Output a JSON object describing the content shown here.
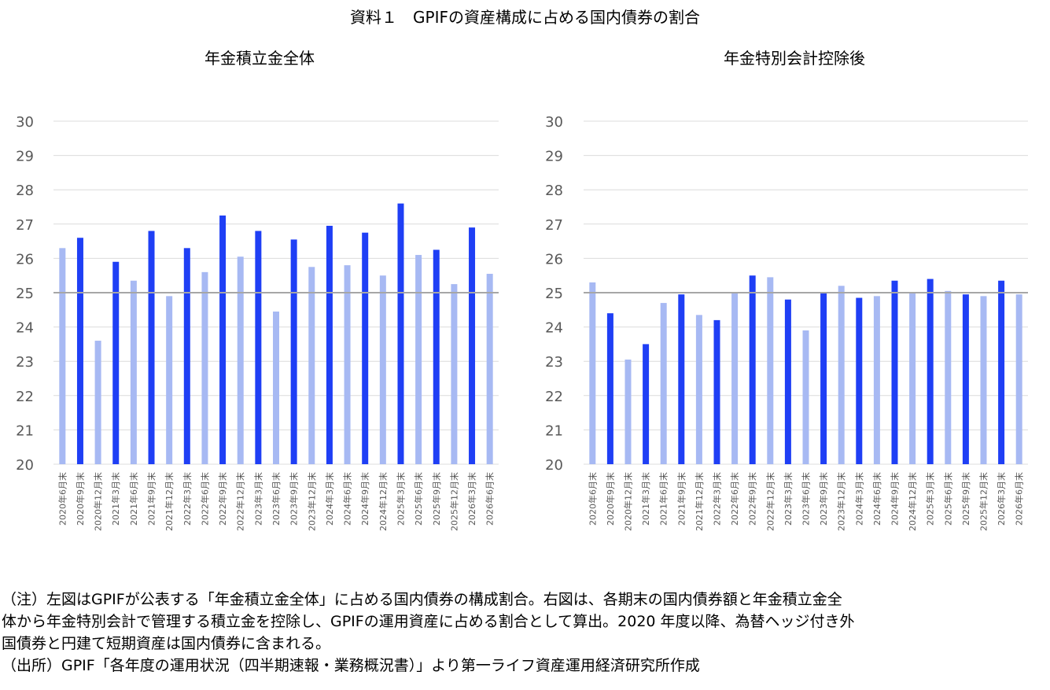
{
  "title": "資料１　GPIFの資産構成に占める国内債券の割合",
  "colors": {
    "dark": "#1f3ff5",
    "light": "#a7b9f3",
    "grid": "#dcdcdc",
    "refline": "#a6a6a6",
    "tick": "#595959"
  },
  "chart_data": [
    {
      "type": "bar",
      "title": "年金積立金全体",
      "categories": [
        "2020年6月末",
        "2020年9月末",
        "2020年12月末",
        "2021年3月末",
        "2021年6月末",
        "2021年9月末",
        "2021年12月末",
        "2022年3月末",
        "2022年6月末",
        "2022年9月末",
        "2022年12月末",
        "2023年3月末",
        "2023年6月末",
        "2023年9月末",
        "2023年12月末",
        "2024年3月末",
        "2024年6月末",
        "2024年9月末",
        "2024年12月末",
        "2025年3月末",
        "2025年6月末",
        "2025年9月末",
        "2025年12月末",
        "2026年3月末",
        "2026年6月末"
      ],
      "values": [
        26.3,
        26.6,
        23.6,
        25.9,
        25.35,
        26.8,
        24.9,
        26.3,
        25.6,
        27.25,
        26.05,
        26.8,
        24.45,
        26.55,
        25.75,
        26.95,
        25.8,
        26.75,
        25.5,
        27.6,
        26.1,
        26.25,
        25.25,
        26.9,
        25.55
      ],
      "bar_colors": [
        "light",
        "dark",
        "light",
        "dark",
        "light",
        "dark",
        "light",
        "dark",
        "light",
        "dark",
        "light",
        "dark",
        "light",
        "dark",
        "light",
        "dark",
        "light",
        "dark",
        "light",
        "dark",
        "light",
        "dark",
        "light",
        "dark",
        "light"
      ],
      "ylim": [
        20,
        30
      ],
      "yticks": [
        "30",
        "29",
        "28",
        "27",
        "26",
        "25",
        "24",
        "23",
        "22",
        "21",
        "20"
      ],
      "reference_line": 25,
      "grid": true
    },
    {
      "type": "bar",
      "title": "年金特別会計控除後",
      "categories": [
        "2020年6月末",
        "2020年9月末",
        "2020年12月末",
        "2021年3月末",
        "2021年6月末",
        "2021年9月末",
        "2021年12月末",
        "2022年3月末",
        "2022年6月末",
        "2022年9月末",
        "2022年12月末",
        "2023年3月末",
        "2023年6月末",
        "2023年9月末",
        "2023年12月末",
        "2024年3月末",
        "2024年6月末",
        "2024年9月末",
        "2024年12月末",
        "2025年3月末",
        "2025年6月末",
        "2025年9月末",
        "2025年12月末",
        "2026年3月末",
        "2026年6月末"
      ],
      "values": [
        25.3,
        24.4,
        23.05,
        23.5,
        24.7,
        24.95,
        24.35,
        24.2,
        25.0,
        25.5,
        25.45,
        24.8,
        23.9,
        25.0,
        25.2,
        24.85,
        24.9,
        25.35,
        25.0,
        25.4,
        25.05,
        24.95,
        24.9,
        25.35,
        24.95
      ],
      "bar_colors": [
        "light",
        "dark",
        "light",
        "dark",
        "light",
        "dark",
        "light",
        "dark",
        "light",
        "dark",
        "light",
        "dark",
        "light",
        "dark",
        "light",
        "dark",
        "light",
        "dark",
        "light",
        "dark",
        "light",
        "dark",
        "light",
        "dark",
        "light"
      ],
      "ylim": [
        20,
        30
      ],
      "yticks": [
        "30",
        "29",
        "28",
        "27",
        "26",
        "25",
        "24",
        "23",
        "22",
        "21",
        "20"
      ],
      "reference_line": 25,
      "grid": true
    }
  ],
  "notes": [
    "（注）左図はGPIFが公表する「年金積立金全体」に占める国内債券の構成割合。右図は、各期末の国内債券額と年金積立金全",
    "体から年金特別会計で管理する積立金を控除し、GPIFの運用資産に占める割合として算出。2020 年度以降、為替ヘッジ付き外",
    "国債券と円建て短期資産は国内債券に含まれる。",
    "（出所）GPIF「各年度の運用状況（四半期速報・業務概況書）」より第一ライフ資産運用経済研究所作成"
  ]
}
